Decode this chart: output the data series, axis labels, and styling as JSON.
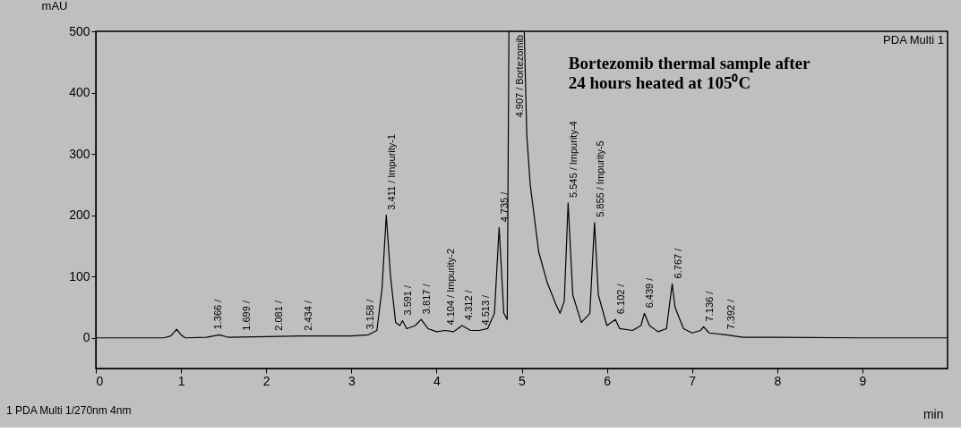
{
  "chart_data": {
    "type": "line",
    "xlabel": "min",
    "ylabel": "mAU",
    "xlim": [
      0,
      10
    ],
    "ylim": [
      -50,
      500
    ],
    "xticks": [
      0,
      1,
      2,
      3,
      4,
      5,
      6,
      7,
      8,
      9
    ],
    "yticks": [
      0,
      100,
      200,
      300,
      400,
      500
    ],
    "marker": "none",
    "line_style": "solid",
    "series": [
      {
        "color": "#000000",
        "x": [
          0,
          0.8,
          0.88,
          0.95,
          1.0,
          1.05,
          1.3,
          1.45,
          1.55,
          2.0,
          2.4,
          3.0,
          3.2,
          3.3,
          3.36,
          3.41,
          3.46,
          3.52,
          3.57,
          3.6,
          3.65,
          3.75,
          3.82,
          3.9,
          4.0,
          4.1,
          4.2,
          4.3,
          4.4,
          4.5,
          4.6,
          4.68,
          4.735,
          4.79,
          4.83,
          4.85,
          5.03,
          5.06,
          5.1,
          5.2,
          5.3,
          5.4,
          5.45,
          5.5,
          5.545,
          5.6,
          5.7,
          5.8,
          5.855,
          5.9,
          6.0,
          6.1,
          6.15,
          6.3,
          6.4,
          6.44,
          6.5,
          6.6,
          6.7,
          6.767,
          6.8,
          6.9,
          7.0,
          7.1,
          7.136,
          7.2,
          7.4,
          7.6,
          8.0,
          9.0,
          10.0
        ],
        "values": [
          0,
          0,
          3,
          14,
          5,
          0,
          1,
          5,
          1,
          2,
          3,
          3,
          5,
          12,
          80,
          200,
          100,
          25,
          20,
          28,
          15,
          20,
          30,
          15,
          10,
          12,
          10,
          20,
          12,
          12,
          15,
          40,
          180,
          40,
          30,
          500,
          500,
          330,
          250,
          140,
          90,
          55,
          40,
          60,
          220,
          70,
          25,
          40,
          188,
          70,
          20,
          30,
          15,
          12,
          20,
          40,
          20,
          10,
          15,
          88,
          50,
          15,
          8,
          12,
          18,
          8,
          5,
          1,
          1,
          0,
          0
        ]
      }
    ],
    "annotations": [
      {
        "text": "1.366 /",
        "x": 1.366,
        "y": 5
      },
      {
        "text": "1.699 /",
        "x": 1.699,
        "y": 3
      },
      {
        "text": "2.081 /",
        "x": 2.081,
        "y": 3
      },
      {
        "text": "2.434 /",
        "x": 2.434,
        "y": 3
      },
      {
        "text": "3.158 /",
        "x": 3.158,
        "y": 5
      },
      {
        "text": "3.411 / Impurity-1",
        "x": 3.411,
        "y": 200
      },
      {
        "text": "3.591 /",
        "x": 3.591,
        "y": 28
      },
      {
        "text": "3.817 /",
        "x": 3.817,
        "y": 30
      },
      {
        "text": "4.104 / Impurity-2",
        "x": 4.104,
        "y": 12
      },
      {
        "text": "4.312 /",
        "x": 4.312,
        "y": 20
      },
      {
        "text": "4.513 /",
        "x": 4.513,
        "y": 12
      },
      {
        "text": "4.735 /",
        "x": 4.735,
        "y": 180
      },
      {
        "text": "4.907 / Bortezomib",
        "x": 4.907,
        "y": 500
      },
      {
        "text": "5.545 / Impurity-4",
        "x": 5.545,
        "y": 220
      },
      {
        "text": "5.855 / Impurity-5",
        "x": 5.855,
        "y": 188
      },
      {
        "text": "6.102 /",
        "x": 6.102,
        "y": 30
      },
      {
        "text": "6.439 /",
        "x": 6.439,
        "y": 40
      },
      {
        "text": "6.767 /",
        "x": 6.767,
        "y": 88
      },
      {
        "text": "7.136 /",
        "x": 7.136,
        "y": 18
      },
      {
        "text": "7.392 /",
        "x": 7.392,
        "y": 5
      },
      "PDA Multi 1",
      "Bortezomib thermal sample after\n24 hours heated at 105⁰C",
      "1  PDA Multi 1/270nm 4nm"
    ]
  }
}
